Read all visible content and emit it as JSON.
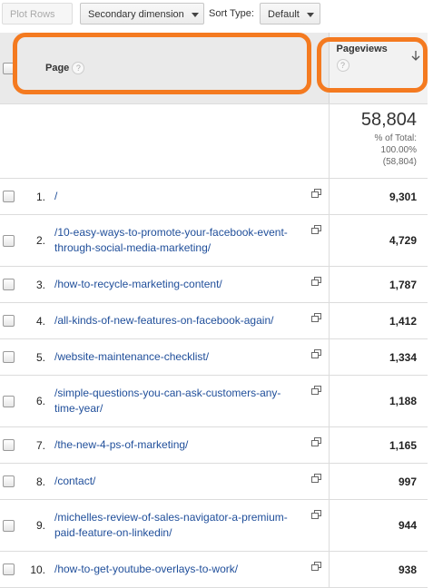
{
  "toolbar": {
    "plot_rows": "Plot Rows",
    "secondary_dimension": "Secondary dimension",
    "sort_type_label": "Sort Type:",
    "sort_type": "Default"
  },
  "header": {
    "page": "Page",
    "pageviews": "Pageviews",
    "help_icon": "?"
  },
  "totals": {
    "pageviews": "58,804",
    "percent_label": "% of Total:",
    "percent": "100.00%",
    "total": "(58,804)"
  },
  "rows": [
    {
      "rank": "1.",
      "page": "/",
      "pageviews": "9,301"
    },
    {
      "rank": "2.",
      "page": "/10-easy-ways-to-promote-your-facebook-event-through-social-media-marketing/",
      "pageviews": "4,729"
    },
    {
      "rank": "3.",
      "page": "/how-to-recycle-marketing-content/",
      "pageviews": "1,787"
    },
    {
      "rank": "4.",
      "page": "/all-kinds-of-new-features-on-facebook-again/",
      "pageviews": "1,412"
    },
    {
      "rank": "5.",
      "page": "/website-maintenance-checklist/",
      "pageviews": "1,334"
    },
    {
      "rank": "6.",
      "page": "/simple-questions-you-can-ask-customers-any-time-year/",
      "pageviews": "1,188"
    },
    {
      "rank": "7.",
      "page": "/the-new-4-ps-of-marketing/",
      "pageviews": "1,165"
    },
    {
      "rank": "8.",
      "page": "/contact/",
      "pageviews": "997"
    },
    {
      "rank": "9.",
      "page": "/michelles-review-of-sales-navigator-a-premium-paid-feature-on-linkedin/",
      "pageviews": "944"
    },
    {
      "rank": "10.",
      "page": "/how-to-get-youtube-overlays-to-work/",
      "pageviews": "938"
    }
  ]
}
